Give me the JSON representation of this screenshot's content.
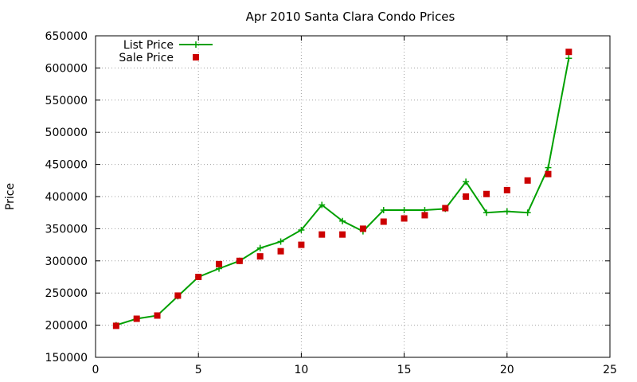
{
  "chart_data": {
    "type": "line",
    "title": "Apr 2010 Santa Clara Condo Prices",
    "xlabel": "",
    "ylabel": "Price",
    "xlim": [
      0,
      25
    ],
    "ylim": [
      150000,
      650000
    ],
    "x_ticks": [
      0,
      5,
      10,
      15,
      20,
      25
    ],
    "y_ticks": [
      150000,
      200000,
      250000,
      300000,
      350000,
      400000,
      450000,
      500000,
      550000,
      600000,
      650000
    ],
    "grid": true,
    "legend_position": "top-left",
    "series": [
      {
        "name": "List Price",
        "style": "line-with-plus-markers",
        "color": "#00a000",
        "points": [
          [
            1,
            200000
          ],
          [
            2,
            210000
          ],
          [
            3,
            215000
          ],
          [
            4,
            245000
          ],
          [
            5,
            275000
          ],
          [
            6,
            288000
          ],
          [
            7,
            300000
          ],
          [
            8,
            320000
          ],
          [
            9,
            330000
          ],
          [
            10,
            348000
          ],
          [
            11,
            387000
          ],
          [
            12,
            362000
          ],
          [
            13,
            346000
          ],
          [
            14,
            379000
          ],
          [
            15,
            379000
          ],
          [
            16,
            379000
          ],
          [
            17,
            381000
          ],
          [
            18,
            423000
          ],
          [
            19,
            375000
          ],
          [
            20,
            377000
          ],
          [
            21,
            375000
          ],
          [
            22,
            445000
          ],
          [
            23,
            615000
          ]
        ]
      },
      {
        "name": "Sale Price",
        "style": "square-markers",
        "color": "#cc0000",
        "points": [
          [
            1,
            199000
          ],
          [
            2,
            210000
          ],
          [
            3,
            215000
          ],
          [
            4,
            246000
          ],
          [
            5,
            275000
          ],
          [
            6,
            295000
          ],
          [
            7,
            300000
          ],
          [
            8,
            307000
          ],
          [
            9,
            315000
          ],
          [
            10,
            325000
          ],
          [
            11,
            341000
          ],
          [
            12,
            341000
          ],
          [
            13,
            350000
          ],
          [
            14,
            361000
          ],
          [
            15,
            366000
          ],
          [
            16,
            371000
          ],
          [
            17,
            382000
          ],
          [
            18,
            400000
          ],
          [
            19,
            404000
          ],
          [
            20,
            410000
          ],
          [
            21,
            425000
          ],
          [
            22,
            435000
          ],
          [
            23,
            625000
          ]
        ]
      }
    ]
  }
}
